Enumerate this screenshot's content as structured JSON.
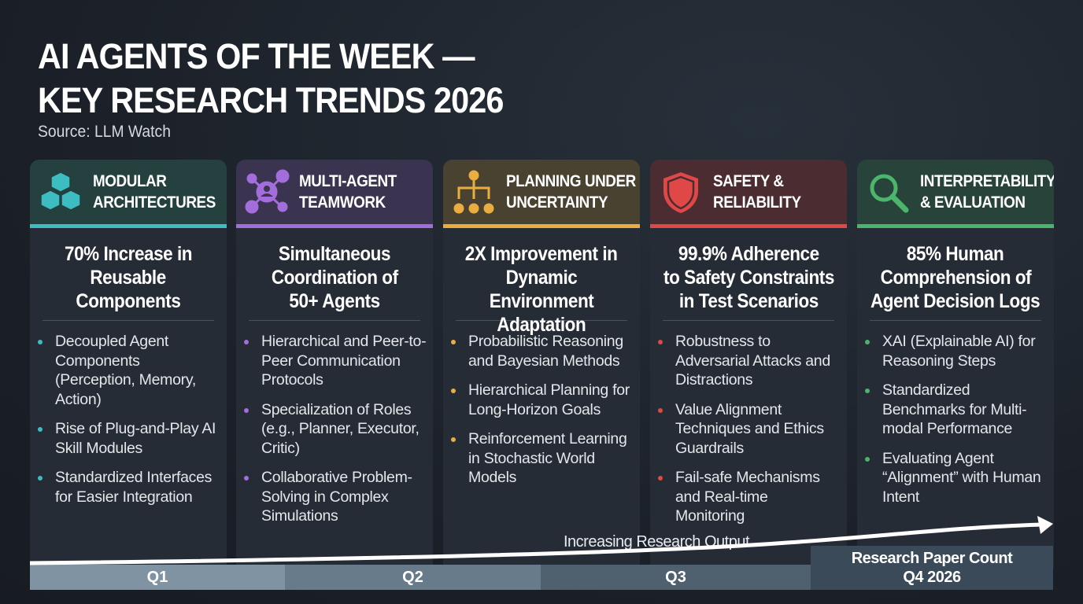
{
  "title_line1": "AI AGENTS OF THE WEEK —",
  "title_line2": "KEY RESEARCH TRENDS 2026",
  "source": "Source: LLM Watch",
  "cards": [
    {
      "icon": "cubes-icon",
      "color": "#3dbdc2",
      "head_bg": "#24403f",
      "title1": "MODULAR",
      "title2": "ARCHITECTURES",
      "headline": [
        "70% Increase in",
        "Reusable",
        "Components"
      ],
      "bullets": [
        "Decoupled Agent Components (Perception, Memory, Action)",
        "Rise of Plug-and-Play AI Skill Modules",
        "Standardized Interfaces for Easier Integration"
      ]
    },
    {
      "icon": "network-icon",
      "color": "#a46ddc",
      "head_bg": "#3a3450",
      "title1": "MULTI-AGENT",
      "title2": "TEAMWORK",
      "headline": [
        "Simultaneous",
        "Coordination of",
        "50+ Agents"
      ],
      "bullets": [
        "Hierarchical and Peer-to-Peer Communication Protocols",
        "Specialization of Roles (e.g., Planner, Executor, Critic)",
        "Collaborative Problem-Solving in Complex Simulations"
      ]
    },
    {
      "icon": "hierarchy-icon",
      "color": "#eaad3f",
      "head_bg": "#4a4230",
      "title1": "PLANNING UNDER",
      "title2": "UNCERTAINTY",
      "headline": [
        "2X Improvement in",
        "Dynamic Environment",
        "Adaptation"
      ],
      "bullets": [
        "Probabilistic Reasoning and Bayesian Methods",
        "Hierarchical Planning for Long-Horizon Goals",
        "Reinforcement Learning in Stochastic World Models"
      ]
    },
    {
      "icon": "shield-icon",
      "color": "#e04848",
      "head_bg": "#4a2c31",
      "title1": "SAFETY &",
      "title2": "RELIABILITY",
      "headline": [
        "99.9% Adherence",
        "to Safety Constraints",
        "in Test Scenarios"
      ],
      "bullets": [
        "Robustness to Adversarial Attacks and Distractions",
        "Value Alignment Techniques and Ethics Guardrails",
        "Fail-safe Mechanisms and Real-time Monitoring"
      ]
    },
    {
      "icon": "magnifier-icon",
      "color": "#4cb56c",
      "head_bg": "#27433a",
      "title1": "INTERPRETABILITY",
      "title2": "& EVALUATION",
      "headline": [
        "85% Human",
        "Comprehension of",
        "Agent Decision Logs"
      ],
      "bullets": [
        "XAI (Explainable AI) for Reasoning Steps",
        "Standardized Benchmarks for Multi-modal Performance",
        "Evaluating Agent “Alignment” with Human Intent"
      ]
    }
  ],
  "timeline": {
    "q1": "Q1",
    "q2": "Q2",
    "q3": "Q3",
    "q4_line1": "Research Paper Count",
    "q4_line2": "Q4 2026",
    "curve_label": "Increasing Research Output"
  }
}
